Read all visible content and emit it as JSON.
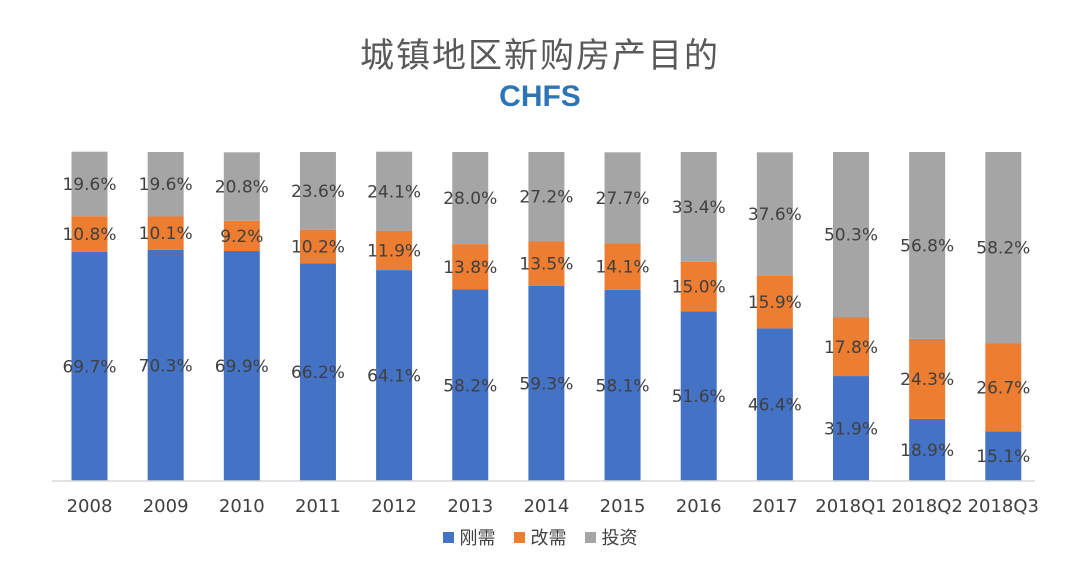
{
  "chart_data": {
    "type": "bar",
    "stacked": true,
    "title": "城镇地区新购房产目的",
    "subtitle": "CHFS",
    "subtitle_color": "#2E75B6",
    "categories": [
      "2008",
      "2009",
      "2010",
      "2011",
      "2012",
      "2013",
      "2014",
      "2015",
      "2016",
      "2017",
      "2018Q1",
      "2018Q2",
      "2018Q3"
    ],
    "ylim": [
      0,
      100
    ],
    "grid": false,
    "legend_placement": "bottom",
    "series": [
      {
        "name": "刚需",
        "color": "#4472C4",
        "values": [
          69.7,
          70.3,
          69.9,
          66.2,
          64.1,
          58.2,
          59.3,
          58.1,
          51.6,
          46.4,
          31.9,
          18.9,
          15.1
        ],
        "labels": [
          "69.7%",
          "70.3%",
          "69.9%",
          "66.2%",
          "64.1%",
          "58.2%",
          "59.3%",
          "58.1%",
          "51.6%",
          "46.4%",
          "31.9%",
          "18.9%",
          "15.1%"
        ]
      },
      {
        "name": "改需",
        "color": "#ED7D31",
        "values": [
          10.8,
          10.1,
          9.2,
          10.2,
          11.9,
          13.8,
          13.5,
          14.1,
          15.0,
          15.9,
          17.8,
          24.3,
          26.7
        ],
        "labels": [
          "10.8%",
          "10.1%",
          "9.2%",
          "10.2%",
          "11.9%",
          "13.8%",
          "13.5%",
          "14.1%",
          "15.0%",
          "15.9%",
          "17.8%",
          "24.3%",
          "26.7%"
        ]
      },
      {
        "name": "投资",
        "color": "#A5A5A5",
        "values": [
          19.6,
          19.6,
          20.8,
          23.6,
          24.1,
          28.0,
          27.2,
          27.7,
          33.4,
          37.6,
          50.3,
          56.8,
          58.2
        ],
        "labels": [
          "19.6%",
          "19.6%",
          "20.8%",
          "23.6%",
          "24.1%",
          "28.0%",
          "27.2%",
          "27.7%",
          "33.4%",
          "37.6%",
          "50.3%",
          "56.8%",
          "58.2%"
        ]
      }
    ]
  }
}
